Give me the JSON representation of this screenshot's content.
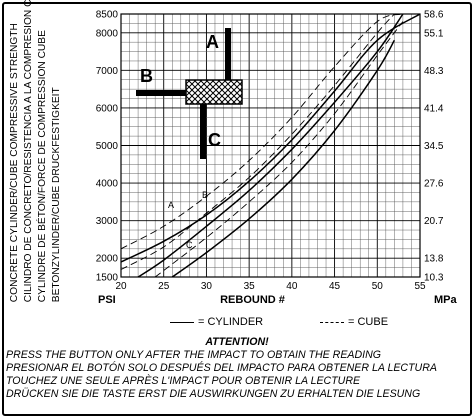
{
  "vertical_labels": [
    "CONCRETE CYLINDER/CUBE COMPRESSIVE STRENGTH",
    "CILINDRO DE CONCRETO/RESISTENCIA A LA COMPRESION CUBE",
    "CYLINDRE DE BÉTON/FORCE DE COMPRESSION CUBE",
    "BETONZYLINDER/CUBE DRUCKFESTIGKEIT"
  ],
  "chart_data": {
    "type": "line",
    "xlabel": "REBOUND #",
    "ylabel_left": "PSI",
    "ylabel_right": "MPa",
    "xlim": [
      20,
      55
    ],
    "ylim": [
      1500,
      8500
    ],
    "x_ticks": [
      "20",
      "25",
      "30",
      "35",
      "40",
      "45",
      "50",
      "55"
    ],
    "y_ticks_left": [
      "1500",
      "2000",
      "3000",
      "4000",
      "5000",
      "6000",
      "7000",
      "8000",
      "8500"
    ],
    "y_ticks_right": [
      "10.3",
      "13.8",
      "20.7",
      "27.6",
      "34.5",
      "41.4",
      "48.3",
      "55.1",
      "58.6"
    ],
    "grid": true,
    "series": [
      {
        "curve": "A",
        "style": "solid",
        "x": [
          20,
          25,
          30,
          35,
          40,
          45,
          50,
          55
        ],
        "y": [
          1900,
          2450,
          3150,
          4050,
          5150,
          6450,
          7800,
          8500
        ]
      },
      {
        "curve": "B",
        "style": "solid",
        "x": [
          22,
          25,
          30,
          35,
          40,
          45,
          50,
          53
        ],
        "y": [
          1500,
          1950,
          2850,
          3800,
          4900,
          6150,
          7500,
          8500
        ]
      },
      {
        "curve": "C",
        "style": "solid",
        "x": [
          26,
          30,
          35,
          40,
          45,
          50,
          52
        ],
        "y": [
          1500,
          2150,
          3050,
          4100,
          5400,
          7000,
          7800
        ]
      },
      {
        "curve": "A",
        "style": "dashed",
        "x": [
          20,
          25,
          30,
          35,
          40,
          45,
          50,
          53
        ],
        "y": [
          2250,
          2850,
          3650,
          4600,
          5750,
          7100,
          8300,
          8500
        ]
      },
      {
        "curve": "B",
        "style": "dashed",
        "x": [
          20,
          25,
          30,
          35,
          40,
          45,
          50,
          52
        ],
        "y": [
          1700,
          2300,
          3200,
          4150,
          5300,
          6600,
          8000,
          8500
        ]
      },
      {
        "curve": "C",
        "style": "dashed",
        "x": [
          24,
          30,
          35,
          40,
          45,
          50,
          53
        ],
        "y": [
          1500,
          2550,
          3500,
          4550,
          5850,
          7400,
          8300
        ]
      }
    ],
    "curve_labels": [
      "A",
      "B",
      "C"
    ],
    "hammer_labels": [
      "A",
      "B",
      "C"
    ]
  },
  "legend": {
    "cylinder": "= CYLINDER",
    "cube": "= CUBE"
  },
  "notes": {
    "attention": "ATTENTION!",
    "lines": [
      "PRESS THE BUTTON ONLY AFTER THE IMPACT TO OBTAIN THE READING",
      "PRESIONAR EL BOTÓN SOLO DESPUÉS DEL IMPACTO PARA OBTENER LA LECTURA",
      "TOUCHEZ UNE SEULE APRÈS L'IMPACT POUR OBTENIR LA LECTURE",
      "DRÜCKEN SIE DIE TASTE ERST DIE AUSWIRKUNGEN ZU ERHALTEN DIE LESUNG"
    ]
  }
}
